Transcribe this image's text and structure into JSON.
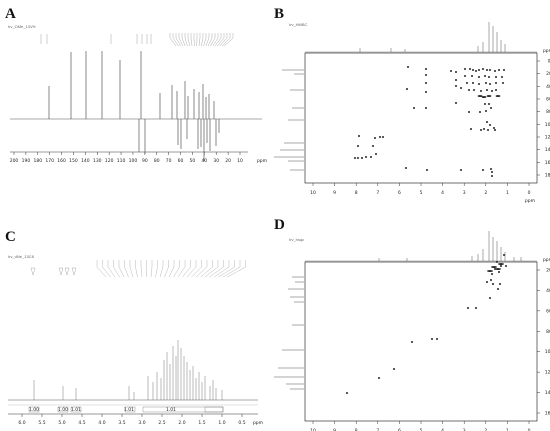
{
  "panels": {
    "A": {
      "letter": "A",
      "exp_name": "Irv_OMe_13VH",
      "axis_unit": "ppm",
      "x_ticks": [
        "200",
        "190",
        "180",
        "170",
        "160",
        "150",
        "140",
        "130",
        "120",
        "110",
        "100",
        "90",
        "80",
        "70",
        "60",
        "50",
        "40",
        "30",
        "20",
        "10",
        "ppm"
      ]
    },
    "B": {
      "letter": "B",
      "exp_name": "Irv_HMBC",
      "x_unit": "ppm",
      "y_unit": "ppm",
      "x_ticks": [
        "10",
        "9",
        "8",
        "7",
        "6",
        "5",
        "4",
        "3",
        "2",
        "1",
        "0"
      ],
      "y_ticks": [
        "0",
        "20",
        "40",
        "60",
        "80",
        "100",
        "120",
        "140",
        "160",
        "180"
      ]
    },
    "C": {
      "letter": "C",
      "exp_name": "Irv_dNe_13C8",
      "axis_unit": "ppm",
      "x_ticks": [
        "6.0",
        "5.5",
        "5.0",
        "4.5",
        "4.0",
        "3.5",
        "3.0",
        "2.5",
        "2.0",
        "1.5",
        "1.0",
        "0.5",
        "ppm"
      ],
      "integrals": [
        "1.00",
        "1.00",
        "1.01",
        "1.01",
        "1.01"
      ]
    },
    "D": {
      "letter": "D",
      "exp_name": "Irv_hsqc",
      "x_unit": "ppm",
      "y_unit": "ppm",
      "x_ticks": [
        "10",
        "9",
        "8",
        "7",
        "6",
        "5",
        "4",
        "3",
        "2",
        "1",
        "0"
      ],
      "y_ticks": [
        "20",
        "40",
        "60",
        "80",
        "100",
        "120",
        "140",
        "160"
      ]
    }
  },
  "colors": {
    "spectrum": "#555555",
    "frame": "#333333",
    "peak": "#111111"
  }
}
